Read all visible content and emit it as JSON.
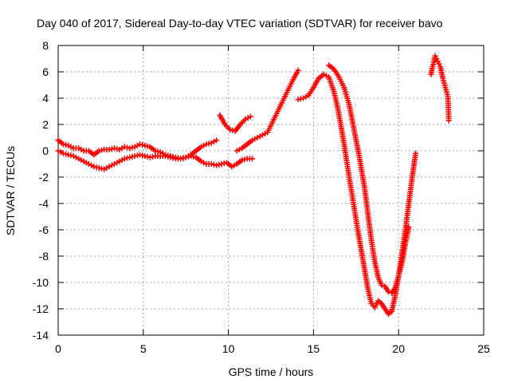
{
  "chart_data": {
    "type": "scatter",
    "title": "Day 040 of 2017, Sidereal Day-to-day VTEC variation (SDTVAR) for receiver bavo",
    "xlabel": "GPS time / hours",
    "ylabel": "SDTVAR / TECUs",
    "xlim": [
      0,
      25
    ],
    "ylim": [
      -14,
      8
    ],
    "xticks": [
      0,
      5,
      10,
      15,
      20,
      25
    ],
    "yticks": [
      -14,
      -12,
      -10,
      -8,
      -6,
      -4,
      -2,
      0,
      2,
      4,
      6,
      8
    ],
    "grid": true,
    "legend": "none",
    "marker": "+",
    "series": [
      {
        "color": "#ff0000",
        "x": [
          0.0,
          0.3,
          0.6,
          0.9,
          1.2,
          1.5,
          1.8,
          2.1,
          2.4,
          2.7,
          3.0,
          3.3,
          3.6,
          3.9,
          4.2,
          4.5,
          4.8,
          5.1,
          5.4,
          5.7,
          6.0,
          6.3,
          6.6,
          6.9,
          7.2,
          7.5,
          7.8,
          8.1,
          8.4,
          8.7,
          9.0,
          9.3
        ],
        "y": [
          0.8,
          0.5,
          0.4,
          0.2,
          0.2,
          0.0,
          0.0,
          -0.3,
          0.0,
          0.1,
          0.1,
          0.2,
          0.1,
          0.3,
          0.2,
          0.3,
          0.5,
          0.4,
          0.3,
          0.0,
          -0.1,
          -0.3,
          -0.4,
          -0.5,
          -0.6,
          -0.5,
          -0.3,
          0.0,
          0.3,
          0.5,
          0.6,
          0.8
        ]
      },
      {
        "color": "#ff0000",
        "x": [
          0.0,
          0.3,
          0.6,
          0.9,
          1.2,
          1.5,
          1.8,
          2.1,
          2.4,
          2.7,
          3.0,
          3.3,
          3.6,
          3.9,
          4.2,
          4.5,
          4.8,
          5.1,
          5.4,
          5.7,
          6.0,
          6.3,
          6.6,
          6.9,
          7.2,
          7.5,
          7.8,
          8.1,
          8.4,
          8.7,
          9.0,
          9.3,
          9.6,
          9.9,
          10.2,
          10.5,
          10.8,
          11.1,
          11.4
        ],
        "y": [
          0.0,
          -0.2,
          -0.3,
          -0.4,
          -0.6,
          -0.8,
          -1.0,
          -1.2,
          -1.3,
          -1.4,
          -1.2,
          -1.0,
          -0.8,
          -0.6,
          -0.5,
          -0.4,
          -0.3,
          -0.4,
          -0.5,
          -0.4,
          -0.4,
          -0.4,
          -0.5,
          -0.6,
          -0.6,
          -0.5,
          -0.4,
          -0.5,
          -0.8,
          -1.0,
          -1.0,
          -1.1,
          -1.0,
          -0.9,
          -1.2,
          -1.0,
          -0.7,
          -0.6,
          -0.6
        ]
      },
      {
        "color": "#ff0000",
        "x": [
          9.5,
          9.8,
          10.1,
          10.4,
          10.7,
          11.0,
          11.3
        ],
        "y": [
          2.7,
          2.0,
          1.6,
          1.5,
          2.0,
          2.4,
          2.6
        ]
      },
      {
        "color": "#ff0000",
        "x": [
          10.5,
          10.8,
          11.1,
          11.4,
          11.7,
          12.0,
          12.3,
          12.6,
          12.9,
          13.2,
          13.5,
          13.8,
          14.1
        ],
        "y": [
          0.0,
          0.2,
          0.5,
          0.8,
          1.0,
          1.2,
          1.4,
          2.2,
          3.0,
          3.8,
          4.6,
          5.4,
          6.1
        ]
      },
      {
        "color": "#ff0000",
        "x": [
          14.1,
          14.4,
          14.7,
          15.0,
          15.3,
          15.6,
          15.9,
          16.2,
          16.4,
          16.6,
          16.8,
          17.0,
          17.2,
          17.4,
          17.6,
          17.8,
          18.0,
          18.2,
          18.4,
          18.6,
          18.8,
          19.0,
          19.2,
          19.4,
          19.6,
          19.8,
          20.0,
          20.2,
          20.4,
          20.6,
          20.8,
          21.0
        ],
        "y": [
          3.9,
          4.0,
          4.2,
          4.8,
          5.5,
          5.8,
          5.6,
          4.5,
          3.4,
          2.0,
          0.5,
          -1.2,
          -2.8,
          -4.4,
          -6.0,
          -7.5,
          -9.0,
          -10.5,
          -11.6,
          -11.9,
          -11.4,
          -11.6,
          -12.0,
          -12.4,
          -12.2,
          -11.0,
          -9.5,
          -7.8,
          -6.0,
          -4.0,
          -2.0,
          -0.2
        ]
      },
      {
        "color": "#ff0000",
        "x": [
          15.9,
          16.2,
          16.5,
          16.8,
          17.1,
          17.4,
          17.7,
          18.0,
          18.2,
          18.4,
          18.6,
          18.8,
          19.0,
          19.2,
          19.4,
          19.6,
          19.8,
          20.0,
          20.2,
          20.4,
          20.6
        ],
        "y": [
          6.5,
          6.2,
          5.6,
          4.8,
          3.5,
          1.5,
          -0.5,
          -2.8,
          -4.8,
          -6.8,
          -8.4,
          -9.6,
          -10.2,
          -10.3,
          -10.7,
          -10.8,
          -10.4,
          -9.5,
          -8.5,
          -7.0,
          -5.8
        ]
      },
      {
        "color": "#ff0000",
        "x": [
          21.9,
          22.0,
          22.15,
          22.3,
          22.45,
          22.6,
          22.75,
          22.9,
          22.95
        ],
        "y": [
          5.8,
          6.4,
          7.2,
          6.8,
          6.4,
          5.5,
          4.8,
          4.1,
          2.3
        ]
      }
    ]
  }
}
